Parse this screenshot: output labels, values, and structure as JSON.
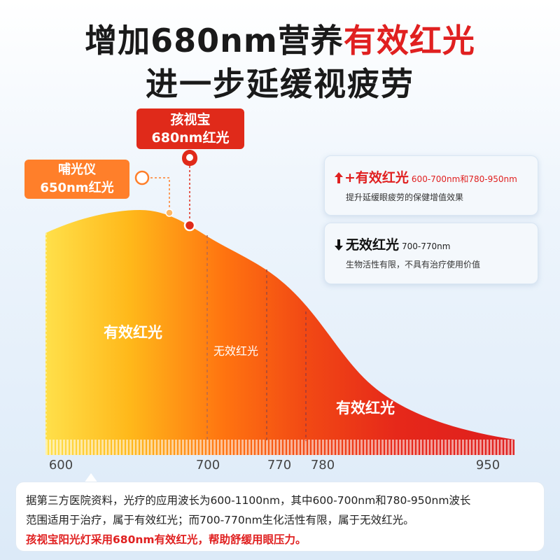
{
  "title": {
    "line1_prefix": "增加680nm营养",
    "line1_highlight": "有效红光",
    "line2": "进一步延缓视疲劳"
  },
  "callouts": {
    "product": {
      "line1": "孩视宝",
      "line2": "680nm红光"
    },
    "competitor": {
      "line1": "哺光仪",
      "line2": "650nm红光"
    }
  },
  "legend": {
    "effective": {
      "icon": "arrow-up-icon",
      "label": "+有效红光",
      "range": "600-700nm和780-950nm",
      "desc": "提升延缓眼疲劳的保健增值效果"
    },
    "ineffective": {
      "icon": "arrow-down-icon",
      "label": "无效红光",
      "range": "700-770nm",
      "desc": "生物活性有限，不具有治疗使用价值"
    }
  },
  "chart_data": {
    "type": "area",
    "x_ticks": [
      "600",
      "700",
      "770",
      "780",
      "950"
    ],
    "x": [
      600,
      700,
      770,
      780,
      950
    ],
    "region_labels": [
      {
        "text": "有效红光",
        "range": [
          600,
          700
        ]
      },
      {
        "text": "无效红光",
        "range": [
          700,
          770
        ]
      },
      {
        "text": "有效红光",
        "range": [
          780,
          950
        ]
      }
    ],
    "colors": {
      "start": "#ffe04a",
      "mid": "#ff6a10",
      "end": "#e0201a"
    }
  },
  "note": {
    "line1": "据第三方医院资料，光疗的应用波长为600-1100nm，其中600-700nm和780-950nm波长",
    "line2": "范围适用于治疗，属于有效红光；而700-770nm生化活性有限，属于无效红光。",
    "line3": "孩视宝阳光灯采用680nm有效红光，帮助舒缓用眼压力。"
  }
}
